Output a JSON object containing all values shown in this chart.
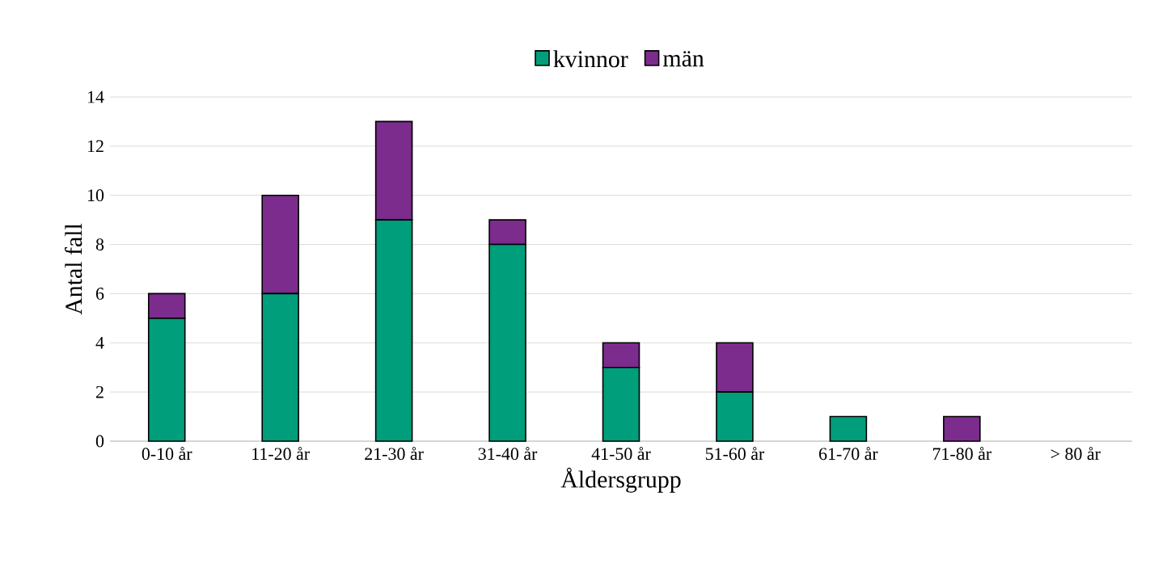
{
  "chart_data": {
    "type": "bar",
    "stacked": true,
    "xlabel": "Åldersgrupp",
    "ylabel": "Antal fall",
    "categories": [
      "0-10 år",
      "11-20 år",
      "21-30 år",
      "31-40 år",
      "41-50 år",
      "51-60 år",
      "61-70 år",
      "71-80 år",
      "> 80 år"
    ],
    "series": [
      {
        "name": "kvinnor",
        "color": "#009e7b",
        "values": [
          5,
          6,
          9,
          8,
          3,
          2,
          1,
          0,
          0
        ]
      },
      {
        "name": "män",
        "color": "#7b2c8c",
        "values": [
          1,
          4,
          4,
          1,
          1,
          2,
          0,
          1,
          0
        ]
      }
    ],
    "ylim": [
      0,
      14
    ],
    "yticks": [
      0,
      2,
      4,
      6,
      8,
      10,
      12,
      14
    ],
    "grid": "y",
    "legend": "top"
  }
}
